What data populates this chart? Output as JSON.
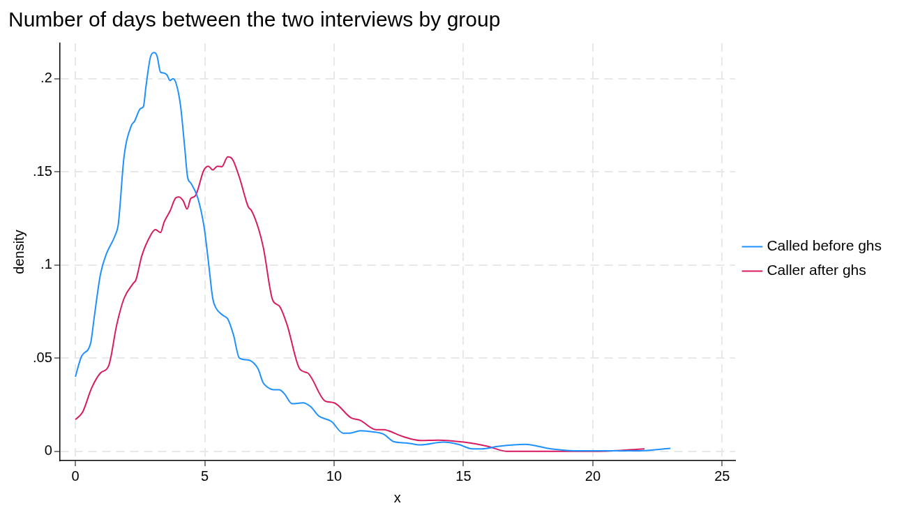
{
  "chart_data": {
    "type": "line",
    "title": "Number of days between the two interviews by group",
    "xlabel": "x",
    "ylabel": "density",
    "xlim": [
      -0.6,
      25.5
    ],
    "ylim": [
      -0.005,
      0.219
    ],
    "xticks": [
      0,
      5,
      10,
      15,
      20,
      25
    ],
    "yticks": [
      {
        "value": 0,
        "label": "0"
      },
      {
        "value": 0.05,
        "label": ".05"
      },
      {
        "value": 0.1,
        "label": ".1"
      },
      {
        "value": 0.15,
        "label": ".15"
      },
      {
        "value": 0.2,
        "label": ".2"
      }
    ],
    "grid": true,
    "legend": "right",
    "marker": "none",
    "line_style": "solid",
    "series": [
      {
        "name": "Called before ghs",
        "color": "#1e90ff",
        "x": [
          0,
          0.24,
          0.59,
          0.72,
          0.97,
          1.2,
          1.54,
          1.66,
          1.88,
          2.17,
          2.28,
          2.52,
          2.63,
          2.73,
          2.91,
          3.05,
          3.16,
          3.29,
          3.43,
          3.54,
          3.66,
          3.77,
          3.88,
          4.06,
          4.22,
          4.34,
          4.46,
          4.73,
          4.98,
          5.14,
          5.31,
          5.43,
          5.7,
          5.89,
          6.11,
          6.34,
          6.67,
          6.92,
          7.07,
          7.25,
          7.37,
          7.68,
          7.88,
          8.07,
          8.38,
          8.79,
          9.09,
          9.4,
          9.9,
          10.35,
          10.61,
          11.01,
          11.52,
          11.92,
          12.32,
          12.78,
          13.34,
          14.23,
          14.8,
          15.35,
          15.7,
          16.37,
          17.38,
          18.39,
          19.5,
          21.65,
          23.0
        ],
        "values": [
          0.04,
          0.051,
          0.058,
          0.071,
          0.095,
          0.106,
          0.116,
          0.122,
          0.158,
          0.175,
          0.177,
          0.184,
          0.185,
          0.196,
          0.212,
          0.214,
          0.212,
          0.2035,
          0.203,
          0.202,
          0.199,
          0.2,
          0.198,
          0.186,
          0.164,
          0.147,
          0.144,
          0.136,
          0.12,
          0.102,
          0.082,
          0.077,
          0.073,
          0.071,
          0.0625,
          0.05,
          0.049,
          0.047,
          0.044,
          0.037,
          0.035,
          0.033,
          0.033,
          0.031,
          0.0255,
          0.026,
          0.024,
          0.019,
          0.016,
          0.0097,
          0.0097,
          0.011,
          0.0104,
          0.0091,
          0.0051,
          0.0045,
          0.0034,
          0.0049,
          0.0037,
          0.0013,
          0.0013,
          0.0027,
          0.0037,
          0.0013,
          0.0002,
          0.0002,
          0.0016
        ]
      },
      {
        "name": "Caller after ghs",
        "color": "#d81b60",
        "x": [
          0,
          0.28,
          0.63,
          0.97,
          1.29,
          1.6,
          1.88,
          2.23,
          2.34,
          2.57,
          2.91,
          3.09,
          3.29,
          3.43,
          3.66,
          3.88,
          4.0,
          4.17,
          4.32,
          4.46,
          4.63,
          4.97,
          5.14,
          5.31,
          5.49,
          5.66,
          5.89,
          6.06,
          6.34,
          6.69,
          6.8,
          7.09,
          7.27,
          7.63,
          7.88,
          8.18,
          8.68,
          8.98,
          9.65,
          10.0,
          10.65,
          11.01,
          11.62,
          11.92,
          12.1,
          12.66,
          13.34,
          14.02,
          15.02,
          15.93,
          16.66,
          20.3,
          22.0
        ],
        "values": [
          0.017,
          0.021,
          0.034,
          0.042,
          0.046,
          0.068,
          0.082,
          0.09,
          0.092,
          0.105,
          0.116,
          0.119,
          0.1174,
          0.123,
          0.129,
          0.136,
          0.1365,
          0.1344,
          0.13,
          0.1357,
          0.137,
          0.151,
          0.153,
          0.151,
          0.153,
          0.1527,
          0.158,
          0.157,
          0.147,
          0.131,
          0.1294,
          0.119,
          0.109,
          0.081,
          0.078,
          0.068,
          0.044,
          0.042,
          0.027,
          0.026,
          0.018,
          0.0166,
          0.0116,
          0.0116,
          0.011,
          0.0079,
          0.0058,
          0.006,
          0.0049,
          0.0027,
          0,
          0,
          0.0013
        ]
      }
    ]
  }
}
